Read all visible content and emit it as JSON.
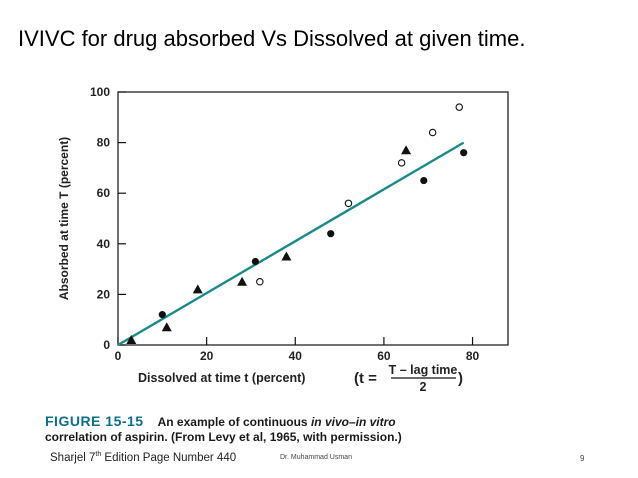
{
  "slide": {
    "title": "IVIVC for drug absorbed Vs Dissolved at given time.",
    "caption_figure": "FIGURE 15-15",
    "caption_text_1": "An example of continuous ",
    "caption_italic": "in vivo–in vitro",
    "caption_text_2": "correlation of aspirin. (From Levy et al, 1965, with permission.)",
    "footer_left_a": "Sharjel 7",
    "footer_left_sup": "th",
    "footer_left_b": " Edition Page Number 440",
    "footer_mid": "Dr. Muhammad Usman",
    "page_number": "9"
  },
  "chart_data": {
    "type": "scatter",
    "xlabel": "Dissolved at time t (percent)",
    "xlabel_formula": {
      "prefix": "(t =",
      "numerator": "T – lag time",
      "denominator": "2",
      "suffix": ")"
    },
    "ylabel": "Absorbed at time T (percent)",
    "xlim": [
      0,
      88
    ],
    "ylim": [
      0,
      100
    ],
    "xticks": [
      0,
      20,
      40,
      60,
      80
    ],
    "yticks": [
      0,
      20,
      40,
      60,
      80,
      100
    ],
    "grid": false,
    "series": [
      {
        "marker": "triangle",
        "points": [
          [
            3,
            2
          ],
          [
            11,
            7
          ],
          [
            18,
            22
          ],
          [
            28,
            25
          ],
          [
            38,
            35
          ],
          [
            65,
            77
          ]
        ]
      },
      {
        "marker": "filled-circle",
        "points": [
          [
            10,
            12
          ],
          [
            31,
            33
          ],
          [
            48,
            44
          ],
          [
            69,
            65
          ],
          [
            78,
            76
          ]
        ]
      },
      {
        "marker": "open-circle",
        "points": [
          [
            32,
            25
          ],
          [
            52,
            56
          ],
          [
            64,
            72
          ],
          [
            71,
            84
          ],
          [
            77,
            94
          ]
        ]
      }
    ],
    "fit_line": {
      "from": [
        0,
        0
      ],
      "to": [
        78,
        80
      ],
      "color": "#1a8a8a"
    }
  }
}
